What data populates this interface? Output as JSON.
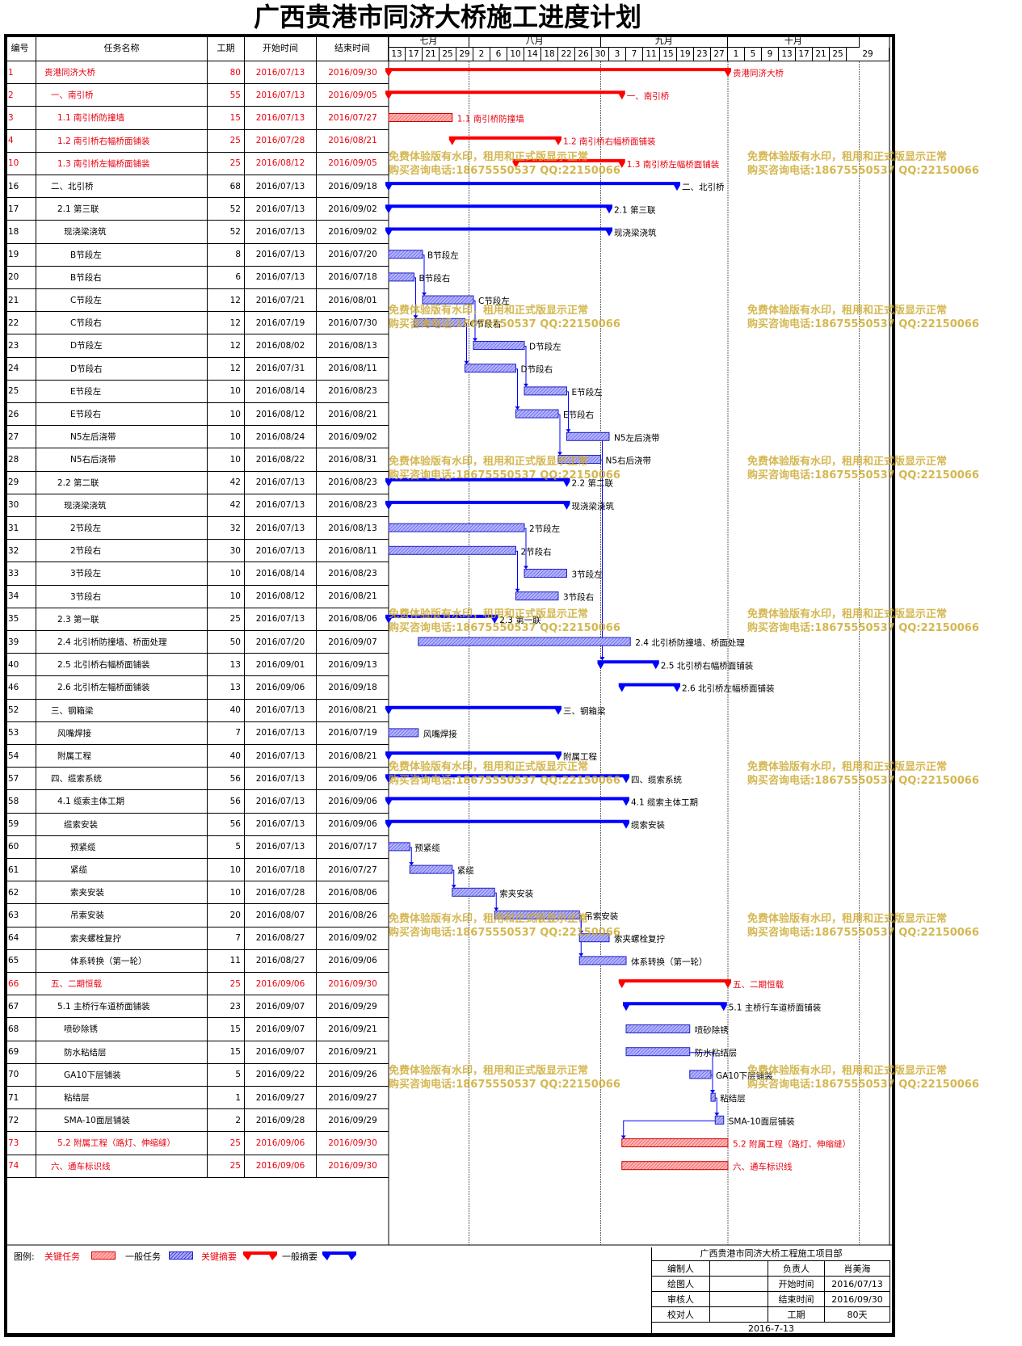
{
  "title": "广西贵港市同济大桥施工进度计划",
  "headers": {
    "id": "编号",
    "name": "任务名称",
    "duration": "工期",
    "start": "开始时间",
    "end": "结束时间"
  },
  "timeline": {
    "start_date": "2016/07/13",
    "months": [
      {
        "label": "七月",
        "start": "2016/07/13",
        "end": "2016/07/31"
      },
      {
        "label": "八月",
        "start": "2016/08/01",
        "end": "2016/08/31"
      },
      {
        "label": "九月",
        "start": "2016/09/01",
        "end": "2016/09/30"
      },
      {
        "label": "十月",
        "start": "2016/10/01",
        "end": "2016/10/31"
      }
    ],
    "days": [
      "13",
      "17",
      "21",
      "25",
      "29",
      "2",
      "6",
      "10",
      "14",
      "18",
      "22",
      "26",
      "30",
      "3",
      "7",
      "11",
      "15",
      "19",
      "23",
      "27",
      "1",
      "5",
      "9",
      "13",
      "17",
      "21",
      "25",
      "29"
    ]
  },
  "tasks": [
    {
      "id": "1",
      "name": "贵港同济大桥",
      "indent": 0,
      "dur": "80",
      "start": "2016/07/13",
      "end": "2016/09/30",
      "type": "summary",
      "critical": true,
      "label": "贵港同济大桥"
    },
    {
      "id": "2",
      "name": "一、南引桥",
      "indent": 1,
      "dur": "55",
      "start": "2016/07/13",
      "end": "2016/09/05",
      "type": "summary",
      "critical": true,
      "label": "一、南引桥"
    },
    {
      "id": "3",
      "name": "1.1 南引桥防撞墙",
      "indent": 2,
      "dur": "15",
      "start": "2016/07/13",
      "end": "2016/07/27",
      "type": "task",
      "critical": true,
      "label": "1.1 南引桥防撞墙"
    },
    {
      "id": "4",
      "name": "1.2 南引桥右幅桥面铺装",
      "indent": 2,
      "dur": "25",
      "start": "2016/07/28",
      "end": "2016/08/21",
      "type": "summary",
      "critical": true,
      "label": "1.2 南引桥右幅桥面铺装"
    },
    {
      "id": "10",
      "name": "1.3 南引桥左幅桥面铺装",
      "indent": 2,
      "dur": "25",
      "start": "2016/08/12",
      "end": "2016/09/05",
      "type": "summary",
      "critical": true,
      "label": "1.3 南引桥左幅桥面铺装"
    },
    {
      "id": "16",
      "name": "二、北引桥",
      "indent": 1,
      "dur": "68",
      "start": "2016/07/13",
      "end": "2016/09/18",
      "type": "summary",
      "critical": false,
      "label": "二、北引桥"
    },
    {
      "id": "17",
      "name": "2.1 第三联",
      "indent": 2,
      "dur": "52",
      "start": "2016/07/13",
      "end": "2016/09/02",
      "type": "summary",
      "critical": false,
      "label": "2.1 第三联"
    },
    {
      "id": "18",
      "name": "现浇梁浇筑",
      "indent": 3,
      "dur": "52",
      "start": "2016/07/13",
      "end": "2016/09/02",
      "type": "summary",
      "critical": false,
      "label": "现浇梁浇筑"
    },
    {
      "id": "19",
      "name": "B节段左",
      "indent": 4,
      "dur": "8",
      "start": "2016/07/13",
      "end": "2016/07/20",
      "type": "task",
      "critical": false,
      "label": "B节段左"
    },
    {
      "id": "20",
      "name": "B节段右",
      "indent": 4,
      "dur": "6",
      "start": "2016/07/13",
      "end": "2016/07/18",
      "type": "task",
      "critical": false,
      "label": "B节段右"
    },
    {
      "id": "21",
      "name": "C节段左",
      "indent": 4,
      "dur": "12",
      "start": "2016/07/21",
      "end": "2016/08/01",
      "type": "task",
      "critical": false,
      "label": "C节段左"
    },
    {
      "id": "22",
      "name": "C节段右",
      "indent": 4,
      "dur": "12",
      "start": "2016/07/19",
      "end": "2016/07/30",
      "type": "task",
      "critical": false,
      "label": "C节段右"
    },
    {
      "id": "23",
      "name": "D节段左",
      "indent": 4,
      "dur": "12",
      "start": "2016/08/02",
      "end": "2016/08/13",
      "type": "task",
      "critical": false,
      "label": "D节段左"
    },
    {
      "id": "24",
      "name": "D节段右",
      "indent": 4,
      "dur": "12",
      "start": "2016/07/31",
      "end": "2016/08/11",
      "type": "task",
      "critical": false,
      "label": "D节段右"
    },
    {
      "id": "25",
      "name": "E节段左",
      "indent": 4,
      "dur": "10",
      "start": "2016/08/14",
      "end": "2016/08/23",
      "type": "task",
      "critical": false,
      "label": "E节段左"
    },
    {
      "id": "26",
      "name": "E节段右",
      "indent": 4,
      "dur": "10",
      "start": "2016/08/12",
      "end": "2016/08/21",
      "type": "task",
      "critical": false,
      "label": "E节段右"
    },
    {
      "id": "27",
      "name": "N5左后浇带",
      "indent": 4,
      "dur": "10",
      "start": "2016/08/24",
      "end": "2016/09/02",
      "type": "task",
      "critical": false,
      "label": "N5左后浇带"
    },
    {
      "id": "28",
      "name": "N5右后浇带",
      "indent": 4,
      "dur": "10",
      "start": "2016/08/22",
      "end": "2016/08/31",
      "type": "task",
      "critical": false,
      "label": "N5右后浇带"
    },
    {
      "id": "29",
      "name": "2.2 第二联",
      "indent": 2,
      "dur": "42",
      "start": "2016/07/13",
      "end": "2016/08/23",
      "type": "summary",
      "critical": false,
      "label": "2.2 第二联"
    },
    {
      "id": "30",
      "name": "现浇梁浇筑",
      "indent": 3,
      "dur": "42",
      "start": "2016/07/13",
      "end": "2016/08/23",
      "type": "summary",
      "critical": false,
      "label": "现浇梁浇筑"
    },
    {
      "id": "31",
      "name": "2节段左",
      "indent": 4,
      "dur": "32",
      "start": "2016/07/13",
      "end": "2016/08/13",
      "type": "task",
      "critical": false,
      "label": "2节段左"
    },
    {
      "id": "32",
      "name": "2节段右",
      "indent": 4,
      "dur": "30",
      "start": "2016/07/13",
      "end": "2016/08/11",
      "type": "task",
      "critical": false,
      "label": "2节段右"
    },
    {
      "id": "33",
      "name": "3节段左",
      "indent": 4,
      "dur": "10",
      "start": "2016/08/14",
      "end": "2016/08/23",
      "type": "task",
      "critical": false,
      "label": "3节段左"
    },
    {
      "id": "34",
      "name": "3节段右",
      "indent": 4,
      "dur": "10",
      "start": "2016/08/12",
      "end": "2016/08/21",
      "type": "task",
      "critical": false,
      "label": "3节段右"
    },
    {
      "id": "35",
      "name": "2.3 第一联",
      "indent": 2,
      "dur": "25",
      "start": "2016/07/13",
      "end": "2016/08/06",
      "type": "summary",
      "critical": false,
      "label": "2.3 第一联"
    },
    {
      "id": "39",
      "name": "2.4 北引桥防撞墙、桥面处理",
      "indent": 2,
      "dur": "50",
      "start": "2016/07/20",
      "end": "2016/09/07",
      "type": "task",
      "critical": false,
      "label": "2.4 北引桥防撞墙、桥面处理"
    },
    {
      "id": "40",
      "name": "2.5 北引桥右幅桥面铺装",
      "indent": 2,
      "dur": "13",
      "start": "2016/09/01",
      "end": "2016/09/13",
      "type": "summary",
      "critical": false,
      "label": "2.5 北引桥右幅桥面铺装"
    },
    {
      "id": "46",
      "name": "2.6 北引桥左幅桥面铺装",
      "indent": 2,
      "dur": "13",
      "start": "2016/09/06",
      "end": "2016/09/18",
      "type": "summary",
      "critical": false,
      "label": "2.6 北引桥左幅桥面铺装"
    },
    {
      "id": "52",
      "name": "三、钢箱梁",
      "indent": 1,
      "dur": "40",
      "start": "2016/07/13",
      "end": "2016/08/21",
      "type": "summary",
      "critical": false,
      "label": "三、钢箱梁"
    },
    {
      "id": "53",
      "name": "风嘴焊接",
      "indent": 2,
      "dur": "7",
      "start": "2016/07/13",
      "end": "2016/07/19",
      "type": "task",
      "critical": false,
      "label": "风嘴焊接"
    },
    {
      "id": "54",
      "name": "附属工程",
      "indent": 2,
      "dur": "40",
      "start": "2016/07/13",
      "end": "2016/08/21",
      "type": "summary",
      "critical": false,
      "label": "附属工程"
    },
    {
      "id": "57",
      "name": "四、缆索系统",
      "indent": 1,
      "dur": "56",
      "start": "2016/07/13",
      "end": "2016/09/06",
      "type": "summary",
      "critical": false,
      "label": "四、缆索系统"
    },
    {
      "id": "58",
      "name": "4.1 缆索主体工期",
      "indent": 2,
      "dur": "56",
      "start": "2016/07/13",
      "end": "2016/09/06",
      "type": "summary",
      "critical": false,
      "label": "4.1 缆索主体工期"
    },
    {
      "id": "59",
      "name": "缆索安装",
      "indent": 3,
      "dur": "56",
      "start": "2016/07/13",
      "end": "2016/09/06",
      "type": "summary",
      "critical": false,
      "label": "缆索安装"
    },
    {
      "id": "60",
      "name": "预紧缆",
      "indent": 4,
      "dur": "5",
      "start": "2016/07/13",
      "end": "2016/07/17",
      "type": "task",
      "critical": false,
      "label": "预紧缆"
    },
    {
      "id": "61",
      "name": "紧缆",
      "indent": 4,
      "dur": "10",
      "start": "2016/07/18",
      "end": "2016/07/27",
      "type": "task",
      "critical": false,
      "label": "紧缆"
    },
    {
      "id": "62",
      "name": "索夹安装",
      "indent": 4,
      "dur": "10",
      "start": "2016/07/28",
      "end": "2016/08/06",
      "type": "task",
      "critical": false,
      "label": "索夹安装"
    },
    {
      "id": "63",
      "name": "吊索安装",
      "indent": 4,
      "dur": "20",
      "start": "2016/08/07",
      "end": "2016/08/26",
      "type": "task",
      "critical": false,
      "label": "吊索安装"
    },
    {
      "id": "64",
      "name": "索夹螺栓复拧",
      "indent": 4,
      "dur": "7",
      "start": "2016/08/27",
      "end": "2016/09/02",
      "type": "task",
      "critical": false,
      "label": "索夹螺栓复拧"
    },
    {
      "id": "65",
      "name": "体系转换（第一轮）",
      "indent": 4,
      "dur": "11",
      "start": "2016/08/27",
      "end": "2016/09/06",
      "type": "task",
      "critical": false,
      "label": "体系转换（第一轮）"
    },
    {
      "id": "66",
      "name": "五、二期恒载",
      "indent": 1,
      "dur": "25",
      "start": "2016/09/06",
      "end": "2016/09/30",
      "type": "summary",
      "critical": true,
      "label": "五、二期恒载"
    },
    {
      "id": "67",
      "name": "5.1 主桥行车道桥面铺装",
      "indent": 2,
      "dur": "23",
      "start": "2016/09/07",
      "end": "2016/09/29",
      "type": "summary",
      "critical": false,
      "label": "5.1 主桥行车道桥面铺装"
    },
    {
      "id": "68",
      "name": "喷砂除锈",
      "indent": 3,
      "dur": "15",
      "start": "2016/09/07",
      "end": "2016/09/21",
      "type": "task",
      "critical": false,
      "label": "喷砂除锈"
    },
    {
      "id": "69",
      "name": "防水粘结层",
      "indent": 3,
      "dur": "15",
      "start": "2016/09/07",
      "end": "2016/09/21",
      "type": "task",
      "critical": false,
      "label": "防水粘结层"
    },
    {
      "id": "70",
      "name": "GA10下层铺装",
      "indent": 3,
      "dur": "5",
      "start": "2016/09/22",
      "end": "2016/09/26",
      "type": "task",
      "critical": false,
      "label": "GA10下层铺装"
    },
    {
      "id": "71",
      "name": "粘结层",
      "indent": 3,
      "dur": "1",
      "start": "2016/09/27",
      "end": "2016/09/27",
      "type": "task",
      "critical": false,
      "label": "粘结层"
    },
    {
      "id": "72",
      "name": "SMA-10面层铺装",
      "indent": 3,
      "dur": "2",
      "start": "2016/09/28",
      "end": "2016/09/29",
      "type": "task",
      "critical": false,
      "label": "SMA-10面层铺装"
    },
    {
      "id": "73",
      "name": "5.2 附属工程（路灯、伸缩缝）",
      "indent": 2,
      "dur": "25",
      "start": "2016/09/06",
      "end": "2016/09/30",
      "type": "task",
      "critical": true,
      "label": "5.2 附属工程（路灯、伸缩缝）"
    },
    {
      "id": "74",
      "name": "六、通车标识线",
      "indent": 1,
      "dur": "25",
      "start": "2016/09/06",
      "end": "2016/09/30",
      "type": "task",
      "critical": true,
      "label": "六、通车标识线"
    }
  ],
  "watermark": {
    "line1": "免费体验版有水印，租用和正式版显示正常",
    "line2": "购买咨询电话:18675550537 QQ:22150066"
  },
  "legend": {
    "title": "图例:",
    "crit_task": "关键任务",
    "task": "一般任务",
    "crit_summary": "关键摘要",
    "summary": "一般摘要"
  },
  "info": {
    "org": "广西贵港市同济大桥工程施工项目部",
    "rows": [
      [
        "编制人",
        "",
        "负责人",
        "肖美海"
      ],
      [
        "绘图人",
        "",
        "开始时间",
        "2016/07/13"
      ],
      [
        "审核人",
        "",
        "结束时间",
        "2016/09/30"
      ],
      [
        "校对人",
        "",
        "工期",
        "80天"
      ]
    ],
    "date": "2016-7-13"
  },
  "colors": {
    "critical": "#ff0000",
    "normal": "#0000ff",
    "crit_text": "#e8000f"
  }
}
